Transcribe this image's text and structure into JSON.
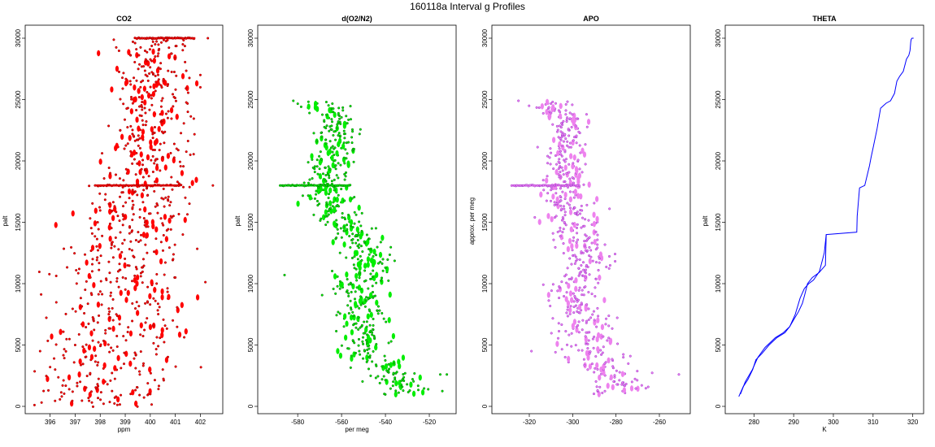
{
  "figure_title": "160118a   Interval g Profiles",
  "chart_data": [
    {
      "type": "scatter",
      "title": "CO2",
      "xlabel": "ppm",
      "ylabel": "palt",
      "xlim": [
        395.2,
        402.7
      ],
      "ylim": [
        0,
        30000
      ],
      "xticks": [
        "396",
        "397",
        "398",
        "399",
        "400",
        "401",
        "402"
      ],
      "yticks": [
        "0",
        "5000",
        "10000",
        "15000",
        "20000",
        "25000",
        "30000"
      ],
      "colors": {
        "fill": "#ff0000",
        "stroke": "#8b0000"
      },
      "profile": [
        [
          0,
          398.1,
          1.3
        ],
        [
          2000,
          398.4,
          1.4
        ],
        [
          4000,
          398.6,
          1.5
        ],
        [
          6000,
          398.7,
          1.5
        ],
        [
          8000,
          398.9,
          1.4
        ],
        [
          10000,
          399.0,
          1.3
        ],
        [
          12000,
          398.8,
          1.2
        ],
        [
          14000,
          399.2,
          1.1
        ],
        [
          16000,
          399.4,
          1.0
        ],
        [
          18000,
          399.6,
          1.0
        ],
        [
          20000,
          399.8,
          0.9
        ],
        [
          22000,
          399.9,
          0.8
        ],
        [
          24000,
          400.0,
          0.8
        ],
        [
          26000,
          400.1,
          0.8
        ],
        [
          28000,
          400.0,
          0.7
        ],
        [
          30000,
          400.1,
          0.7
        ]
      ],
      "band_lines": [
        {
          "y": 30000,
          "x1": 399.4,
          "x2": 401.8
        },
        {
          "y": 18000,
          "x1": 397.8,
          "x2": 401.2
        }
      ],
      "points": [
        {
          "x": 395.6,
          "y": 4500
        },
        {
          "x": 396.0,
          "y": 3200
        },
        {
          "x": 396.5,
          "y": 1700
        },
        {
          "x": 396.9,
          "y": 1200
        },
        {
          "x": 397.2,
          "y": 2000
        },
        {
          "x": 397.0,
          "y": 5000
        },
        {
          "x": 397.4,
          "y": 9500
        },
        {
          "x": 397.7,
          "y": 12000
        },
        {
          "x": 397.9,
          "y": 15000
        },
        {
          "x": 398.4,
          "y": 19000
        },
        {
          "x": 398.8,
          "y": 22500
        },
        {
          "x": 399.2,
          "y": 26500
        },
        {
          "x": 401.3,
          "y": 29500
        },
        {
          "x": 402.3,
          "y": 30000
        },
        {
          "x": 402.0,
          "y": 27000
        },
        {
          "x": 402.0,
          "y": 26000
        },
        {
          "x": 401.5,
          "y": 24000
        },
        {
          "x": 401.6,
          "y": 20500
        },
        {
          "x": 401.4,
          "y": 17000
        },
        {
          "x": 401.3,
          "y": 14000
        },
        {
          "x": 401.0,
          "y": 10500
        },
        {
          "x": 400.9,
          "y": 7000
        },
        {
          "x": 400.5,
          "y": 3000
        },
        {
          "x": 400.0,
          "y": 1000
        },
        {
          "x": 402.5,
          "y": 18000
        }
      ]
    },
    {
      "type": "scatter",
      "title": "d(O2/N2)",
      "xlabel": "per meg",
      "ylabel": "palt",
      "xlim": [
        -596,
        -510
      ],
      "ylim": [
        0,
        30000
      ],
      "xticks": [
        "-580",
        "-560",
        "-540",
        "-520"
      ],
      "yticks": [
        "0",
        "5000",
        "10000",
        "15000",
        "20000",
        "25000",
        "30000"
      ],
      "colors": {
        "fill": "#00ee00",
        "stroke": "#006400"
      },
      "profile": [
        [
          1000,
          -530,
          7
        ],
        [
          2500,
          -534,
          7
        ],
        [
          4000,
          -546,
          7
        ],
        [
          6000,
          -550,
          6
        ],
        [
          8000,
          -550,
          6
        ],
        [
          10000,
          -553,
          6
        ],
        [
          12000,
          -548,
          6
        ],
        [
          13500,
          -552,
          6
        ],
        [
          15500,
          -562,
          6
        ],
        [
          17000,
          -565,
          5
        ],
        [
          18500,
          -567,
          5
        ],
        [
          20000,
          -563,
          5
        ],
        [
          22000,
          -564,
          5
        ],
        [
          23500,
          -562,
          4
        ],
        [
          24800,
          -572,
          5
        ]
      ],
      "band_lines": [
        {
          "y": 18000,
          "x1": -588,
          "x2": -556
        }
      ],
      "points": [
        {
          "x": -586,
          "y": 10700
        },
        {
          "x": -582,
          "y": 24900
        },
        {
          "x": -515,
          "y": 2600
        },
        {
          "x": -512,
          "y": 2600
        },
        {
          "x": -540,
          "y": 11300
        },
        {
          "x": -555,
          "y": 22400
        }
      ]
    },
    {
      "type": "scatter",
      "title": "APO",
      "xlabel": "",
      "ylabel": "approx. per meg",
      "xlim": [
        -335,
        -248
      ],
      "ylim": [
        0,
        30000
      ],
      "xticks": [
        "-320",
        "-300",
        "-280",
        "-260"
      ],
      "yticks": [
        "0",
        "5000",
        "10000",
        "15000",
        "20000",
        "25000",
        "30000"
      ],
      "colors": {
        "fill": "#ee82ee",
        "stroke": "#9932cc"
      },
      "profile": [
        [
          1000,
          -278,
          7
        ],
        [
          2500,
          -279,
          7
        ],
        [
          4000,
          -290,
          7
        ],
        [
          6000,
          -293,
          6
        ],
        [
          8000,
          -297,
          6
        ],
        [
          10000,
          -297,
          6
        ],
        [
          12000,
          -293,
          6
        ],
        [
          13500,
          -297,
          6
        ],
        [
          15500,
          -301,
          6
        ],
        [
          17000,
          -303,
          5
        ],
        [
          18500,
          -304,
          5
        ],
        [
          20000,
          -302,
          5
        ],
        [
          22000,
          -303,
          5
        ],
        [
          23500,
          -302,
          4
        ],
        [
          24800,
          -313,
          5
        ]
      ],
      "band_lines": [
        {
          "y": 18000,
          "x1": -328,
          "x2": -297
        }
      ],
      "points": [
        {
          "x": -319,
          "y": 4500
        },
        {
          "x": -325,
          "y": 24900
        },
        {
          "x": -251,
          "y": 2600
        },
        {
          "x": -283,
          "y": 16100
        }
      ]
    },
    {
      "type": "line",
      "title": "THETA",
      "xlabel": "K",
      "ylabel": "palt",
      "xlim": [
        274,
        321.5
      ],
      "ylim": [
        0,
        30000
      ],
      "xticks": [
        "280",
        "290",
        "300",
        "310",
        "320"
      ],
      "yticks": [
        "0",
        "5000",
        "10000",
        "15000",
        "20000",
        "25000",
        "30000"
      ],
      "colors": {
        "line": "#0000ff"
      },
      "series": [
        {
          "x": [
            276.2,
            277.3,
            278.5,
            279.7,
            280.5,
            282.0,
            283.8,
            285.8,
            287.8,
            289.0,
            290.1,
            291.2,
            292.2,
            292.8,
            293.5,
            294.7,
            296.4,
            298.0,
            298.2,
            305.9,
            306.0,
            306.6,
            307.9,
            309.1,
            309.5,
            310.1,
            311.0,
            311.9,
            313.3,
            314.4,
            315.4,
            316.0,
            316.7,
            317.6,
            318.4,
            319.0,
            319.3,
            319.5,
            319.6,
            319.8,
            320.2
          ],
          "y": [
            800,
            1600,
            2200,
            3000,
            3800,
            4300,
            5000,
            5600,
            6000,
            6500,
            7100,
            7700,
            8400,
            9100,
            10000,
            10500,
            10900,
            11500,
            14000,
            14200,
            15500,
            17800,
            18000,
            19600,
            20300,
            21200,
            22600,
            24300,
            24700,
            24900,
            25500,
            26500,
            26900,
            27300,
            28300,
            28600,
            29000,
            29700,
            29900,
            30000,
            30000
          ]
        },
        {
          "x": [
            276.6,
            277.8,
            279.6,
            281.0,
            282.8,
            285.4,
            287.4,
            289.0,
            290.4,
            291.6,
            292.7,
            293.8,
            295.0,
            296.5,
            297.7,
            298.2
          ],
          "y": [
            1000,
            2000,
            3000,
            4000,
            4800,
            5600,
            6000,
            6500,
            7500,
            8800,
            9600,
            10000,
            10300,
            11000,
            12500,
            14000
          ]
        }
      ]
    }
  ]
}
